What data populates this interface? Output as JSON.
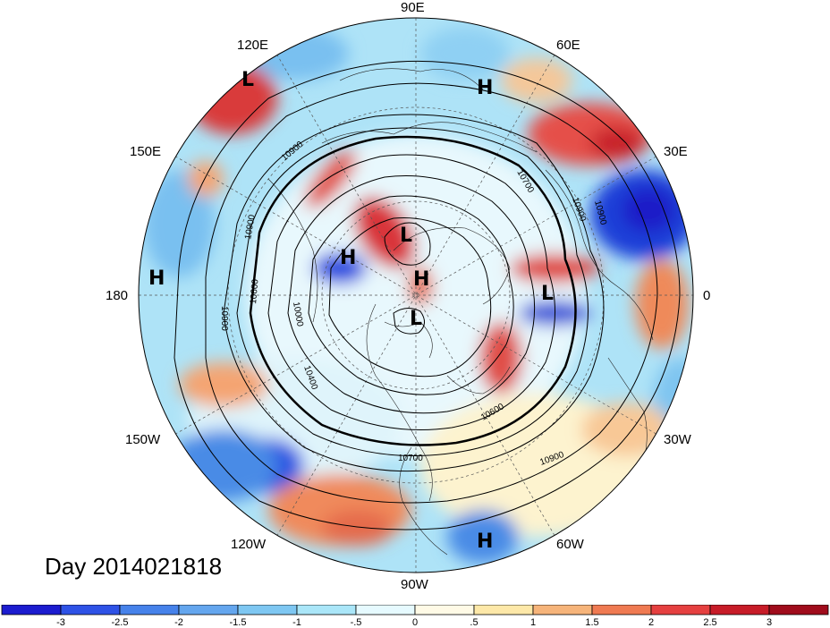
{
  "title": "Day 2014021818",
  "longitude_labels": [
    {
      "text": "90E"
    },
    {
      "text": "60E"
    },
    {
      "text": "30E"
    },
    {
      "text": "0"
    },
    {
      "text": "30W"
    },
    {
      "text": "60W"
    },
    {
      "text": "90W"
    },
    {
      "text": "120W"
    },
    {
      "text": "150W"
    },
    {
      "text": "180"
    },
    {
      "text": "150E"
    },
    {
      "text": "120E"
    }
  ],
  "pressure_centers": [
    {
      "type": "L",
      "name": "low-120e"
    },
    {
      "type": "H",
      "name": "high-70e"
    },
    {
      "type": "L",
      "name": "low-arctic-east"
    },
    {
      "type": "H",
      "name": "high-siberia"
    },
    {
      "type": "H",
      "name": "high-pole"
    },
    {
      "type": "L",
      "name": "low-greenland-east"
    },
    {
      "type": "L",
      "name": "low-canada-north"
    },
    {
      "type": "H",
      "name": "high-180"
    },
    {
      "type": "H",
      "name": "high-atlantic-south"
    }
  ],
  "contour_labels": [
    "10900",
    "10900",
    "10700",
    "10900",
    "10600",
    "10900",
    "10400",
    "10700",
    "10000",
    "10900",
    "10600",
    "10900"
  ],
  "colorbar": {
    "tick_labels": [
      "-3",
      "-2.5",
      "-2",
      "-1.5",
      "-1",
      "-.5",
      "0",
      ".5",
      "1",
      "1.5",
      "2",
      "2.5",
      "3"
    ],
    "colors": [
      "#1c1ccf",
      "#2e52e6",
      "#4682ea",
      "#64a6ee",
      "#7ec7f2",
      "#aae6f8",
      "#e6faff",
      "#fffae6",
      "#fde8a8",
      "#f6b47a",
      "#ef7a52",
      "#e54040",
      "#c71c28",
      "#a00c1c"
    ]
  }
}
